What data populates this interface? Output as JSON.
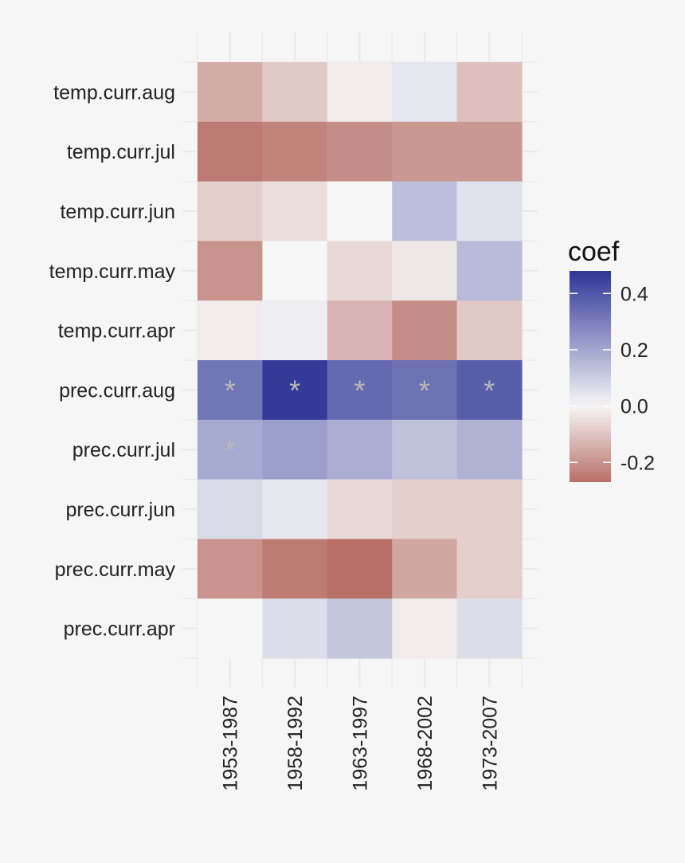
{
  "chart_data": {
    "type": "heatmap",
    "title": "",
    "xlabel": "",
    "ylabel": "",
    "x_categories": [
      "1953-1987",
      "1958-1992",
      "1963-1997",
      "1968-2002",
      "1973-2007"
    ],
    "y_categories": [
      "temp.curr.aug",
      "temp.curr.jul",
      "temp.curr.jun",
      "temp.curr.may",
      "temp.curr.apr",
      "prec.curr.aug",
      "prec.curr.jul",
      "prec.curr.jun",
      "prec.curr.may",
      "prec.curr.apr"
    ],
    "values": [
      [
        -0.15,
        -0.09,
        -0.02,
        0.04,
        -0.11
      ],
      [
        -0.25,
        -0.23,
        -0.21,
        -0.19,
        -0.19
      ],
      [
        -0.08,
        -0.05,
        0.0,
        0.14,
        0.05
      ],
      [
        -0.2,
        0.0,
        -0.06,
        -0.03,
        0.15
      ],
      [
        -0.02,
        0.02,
        -0.13,
        -0.21,
        -0.09
      ],
      [
        0.32,
        0.47,
        0.35,
        0.33,
        0.38
      ],
      [
        0.19,
        0.22,
        0.18,
        0.13,
        0.17
      ],
      [
        0.07,
        0.04,
        -0.06,
        -0.08,
        -0.08
      ],
      [
        -0.2,
        -0.25,
        -0.3,
        -0.16,
        -0.08
      ],
      [
        0.0,
        0.06,
        0.12,
        -0.02,
        0.06
      ]
    ],
    "significance_marker": "*",
    "significant": [
      [
        false,
        false,
        false,
        false,
        false
      ],
      [
        false,
        false,
        false,
        false,
        false
      ],
      [
        false,
        false,
        false,
        false,
        false
      ],
      [
        false,
        false,
        false,
        false,
        false
      ],
      [
        false,
        false,
        false,
        false,
        false
      ],
      [
        true,
        true,
        true,
        true,
        true
      ],
      [
        true,
        false,
        false,
        false,
        false
      ],
      [
        false,
        false,
        false,
        false,
        false
      ],
      [
        false,
        false,
        false,
        false,
        false
      ],
      [
        false,
        false,
        false,
        false,
        false
      ]
    ],
    "legend": {
      "title": "coef",
      "ticks": [
        0.4,
        0.2,
        0.0,
        -0.2
      ],
      "tick_labels": [
        "0.4",
        "0.2",
        "0.0",
        "-0.2"
      ],
      "range": [
        -0.27,
        0.48
      ],
      "placement": "right"
    },
    "colors": {
      "low": "#b87068",
      "mid": "#f6f6f6",
      "high": "#2f3696",
      "background": "#f6f6f6",
      "grid": "#e9e9e9",
      "marker": "#b9b9b9",
      "text": "#222222"
    }
  }
}
